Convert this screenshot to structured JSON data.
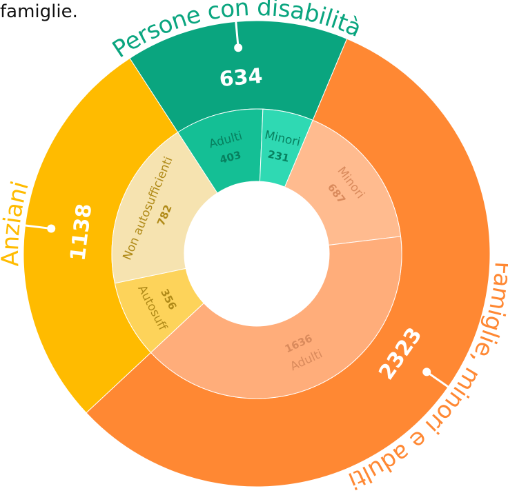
{
  "intro_text": "famiglie.",
  "chart_data": {
    "type": "sunburst",
    "series": [
      {
        "name": "Persone con disabilità",
        "value": 634,
        "color": "#0aa57f",
        "children": [
          {
            "name": "Adulti",
            "value": 403,
            "color": "#14bf95",
            "label_color": "#07805f"
          },
          {
            "name": "Minori",
            "value": 231,
            "color": "#2fd9b3",
            "label_color": "#07805f"
          }
        ]
      },
      {
        "name": "Famiglie, minori e adulti",
        "value": 2323,
        "color": "#ff8833",
        "children": [
          {
            "name": "Minori",
            "value": 687,
            "color": "#ffbb8f",
            "label_color": "#d98a5c"
          },
          {
            "name": "Adulti",
            "value": 1636,
            "color": "#ffad7a",
            "label_color": "#d98a5c"
          }
        ]
      },
      {
        "name": "Anziani",
        "value": 1138,
        "color": "#ffbb00",
        "children": [
          {
            "name": "Autosuff",
            "value": 356,
            "color": "#fdd35a",
            "label_color": "#b08a18"
          },
          {
            "name": "Non autosufficienti",
            "value": 782,
            "color": "#f6e3b0",
            "label_color": "#b08a18"
          }
        ]
      }
    ]
  }
}
